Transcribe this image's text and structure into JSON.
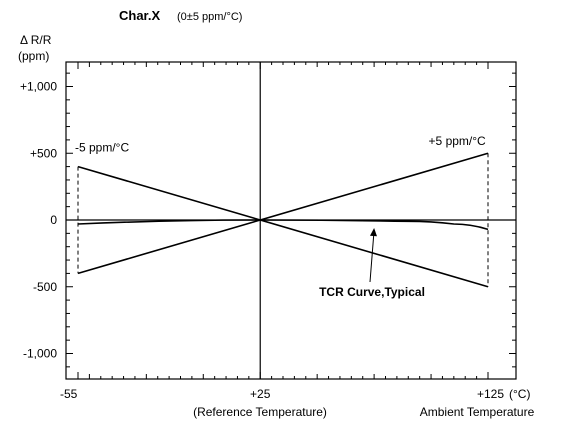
{
  "chart_data": {
    "type": "line",
    "title": "Char.X",
    "subtitle": "(0±5 ppm/°C)",
    "ylabel": "Δ R/R\n(ppm)",
    "ylabel_lines": [
      "Δ R/R",
      "(ppm)"
    ],
    "xlabel": "Ambient Temperature",
    "x_unit": "(°C)",
    "x_reference_label": "(Reference Temperature)",
    "xlim": [
      -55,
      125
    ],
    "ylim": [
      -1200,
      1200
    ],
    "grid": false,
    "x_ticks": [
      {
        "value": -55,
        "label": "-55"
      },
      {
        "value": 25,
        "label": "+25"
      },
      {
        "value": 125,
        "label": "+125"
      }
    ],
    "y_ticks": [
      {
        "value": 1000,
        "label": "+1,000"
      },
      {
        "value": 500,
        "label": "+500"
      },
      {
        "value": 0,
        "label": "0"
      },
      {
        "value": -500,
        "label": "-500"
      },
      {
        "value": -1000,
        "label": "-1,000"
      }
    ],
    "series": [
      {
        "key": "upper-bound",
        "x": [
          -55,
          25,
          125
        ],
        "y": [
          400,
          0,
          500
        ],
        "style": "solid"
      },
      {
        "key": "lower-bound",
        "x": [
          -55,
          25,
          125
        ],
        "y": [
          -400,
          0,
          -500
        ],
        "style": "solid"
      },
      {
        "key": "tcr-typical",
        "x": [
          -55,
          25,
          90,
          110,
          125
        ],
        "y": [
          -30,
          0,
          -10,
          -30,
          -70
        ],
        "style": "solid"
      },
      {
        "key": "left-limit",
        "x": [
          -55,
          -55
        ],
        "y": [
          400,
          -400
        ],
        "style": "dashed"
      },
      {
        "key": "right-limit",
        "x": [
          125,
          125
        ],
        "y": [
          500,
          -500
        ],
        "style": "dashed"
      }
    ],
    "annotations": [
      {
        "key": "minus5",
        "text": "-5 ppm/°C",
        "x": -55,
        "y": 500
      },
      {
        "key": "plus5",
        "text": "+5 ppm/°C",
        "x": 124,
        "y": 590
      },
      {
        "key": "tcr",
        "text": "TCR Curve,Typical",
        "x": 90,
        "y": -560,
        "arrow_to": [
          75,
          -30
        ]
      }
    ]
  }
}
